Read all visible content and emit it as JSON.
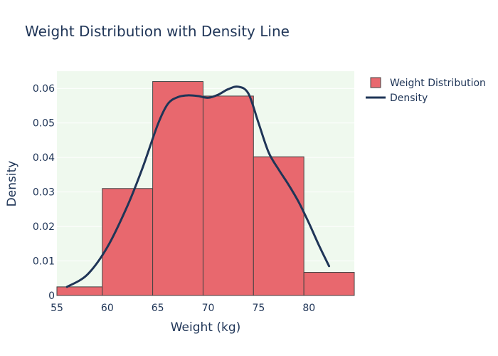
{
  "chart_data": {
    "type": "bar",
    "title": "Weight Distribution with Density Line",
    "xlabel": "Weight (kg)",
    "ylabel": "Density",
    "xlim": [
      55,
      84.5
    ],
    "ylim": [
      0,
      0.065
    ],
    "x_ticks": [
      55,
      60,
      65,
      70,
      75,
      80
    ],
    "y_ticks": [
      0,
      0.01,
      0.02,
      0.03,
      0.04,
      0.05,
      0.06
    ],
    "y_tick_labels": [
      "0",
      "0.01",
      "0.02",
      "0.03",
      "0.04",
      "0.05",
      "0.06"
    ],
    "grid": true,
    "legend_position": "top-right",
    "series": [
      {
        "name": "Weight Distribution",
        "kind": "histogram",
        "color": "#e8686e",
        "bins": [
          {
            "x0": 54.5,
            "x1": 59.5,
            "value": 0.0025
          },
          {
            "x0": 59.5,
            "x1": 64.5,
            "value": 0.031
          },
          {
            "x0": 64.5,
            "x1": 69.5,
            "value": 0.062
          },
          {
            "x0": 69.5,
            "x1": 74.5,
            "value": 0.0578
          },
          {
            "x0": 74.5,
            "x1": 79.5,
            "value": 0.0402
          },
          {
            "x0": 79.5,
            "x1": 84.5,
            "value": 0.0067
          }
        ]
      },
      {
        "name": "Density",
        "kind": "line",
        "color": "#1f3557",
        "x": [
          56,
          58,
          60,
          62,
          63.5,
          65,
          66,
          67,
          68,
          69,
          70,
          71,
          72,
          73,
          74,
          75,
          76,
          77,
          78,
          79,
          80,
          81,
          82
        ],
        "y": [
          0.0025,
          0.006,
          0.014,
          0.026,
          0.037,
          0.0495,
          0.0555,
          0.0575,
          0.058,
          0.0578,
          0.0573,
          0.0582,
          0.0598,
          0.0605,
          0.0585,
          0.05,
          0.0415,
          0.0365,
          0.032,
          0.027,
          0.021,
          0.0145,
          0.0085
        ]
      }
    ]
  }
}
